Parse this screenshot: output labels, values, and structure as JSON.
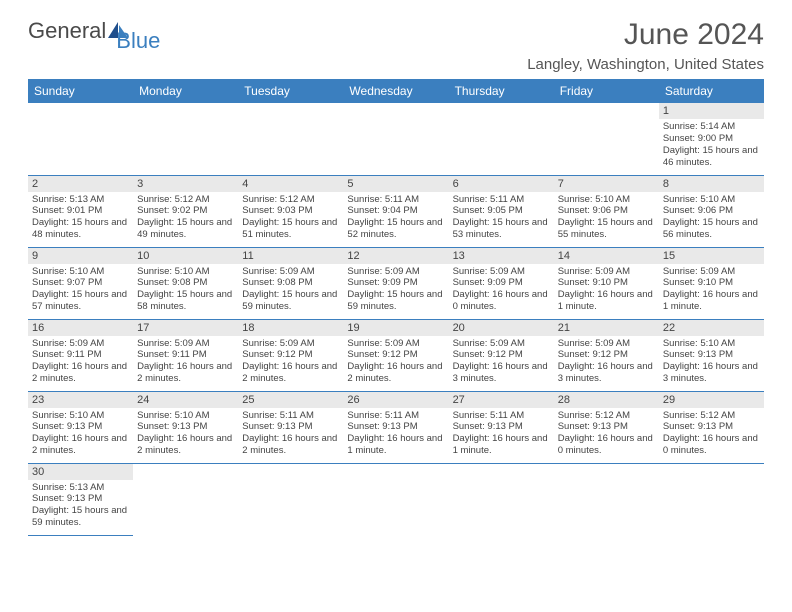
{
  "logo": {
    "text1": "General",
    "text2": "Blue"
  },
  "title": "June 2024",
  "location": "Langley, Washington, United States",
  "header_color": "#3b7fbf",
  "day_names": [
    "Sunday",
    "Monday",
    "Tuesday",
    "Wednesday",
    "Thursday",
    "Friday",
    "Saturday"
  ],
  "weeks": [
    [
      null,
      null,
      null,
      null,
      null,
      null,
      {
        "n": "1",
        "sr": "5:14 AM",
        "ss": "9:00 PM",
        "dl": "15 hours and 46 minutes."
      }
    ],
    [
      {
        "n": "2",
        "sr": "5:13 AM",
        "ss": "9:01 PM",
        "dl": "15 hours and 48 minutes."
      },
      {
        "n": "3",
        "sr": "5:12 AM",
        "ss": "9:02 PM",
        "dl": "15 hours and 49 minutes."
      },
      {
        "n": "4",
        "sr": "5:12 AM",
        "ss": "9:03 PM",
        "dl": "15 hours and 51 minutes."
      },
      {
        "n": "5",
        "sr": "5:11 AM",
        "ss": "9:04 PM",
        "dl": "15 hours and 52 minutes."
      },
      {
        "n": "6",
        "sr": "5:11 AM",
        "ss": "9:05 PM",
        "dl": "15 hours and 53 minutes."
      },
      {
        "n": "7",
        "sr": "5:10 AM",
        "ss": "9:06 PM",
        "dl": "15 hours and 55 minutes."
      },
      {
        "n": "8",
        "sr": "5:10 AM",
        "ss": "9:06 PM",
        "dl": "15 hours and 56 minutes."
      }
    ],
    [
      {
        "n": "9",
        "sr": "5:10 AM",
        "ss": "9:07 PM",
        "dl": "15 hours and 57 minutes."
      },
      {
        "n": "10",
        "sr": "5:10 AM",
        "ss": "9:08 PM",
        "dl": "15 hours and 58 minutes."
      },
      {
        "n": "11",
        "sr": "5:09 AM",
        "ss": "9:08 PM",
        "dl": "15 hours and 59 minutes."
      },
      {
        "n": "12",
        "sr": "5:09 AM",
        "ss": "9:09 PM",
        "dl": "15 hours and 59 minutes."
      },
      {
        "n": "13",
        "sr": "5:09 AM",
        "ss": "9:09 PM",
        "dl": "16 hours and 0 minutes."
      },
      {
        "n": "14",
        "sr": "5:09 AM",
        "ss": "9:10 PM",
        "dl": "16 hours and 1 minute."
      },
      {
        "n": "15",
        "sr": "5:09 AM",
        "ss": "9:10 PM",
        "dl": "16 hours and 1 minute."
      }
    ],
    [
      {
        "n": "16",
        "sr": "5:09 AM",
        "ss": "9:11 PM",
        "dl": "16 hours and 2 minutes."
      },
      {
        "n": "17",
        "sr": "5:09 AM",
        "ss": "9:11 PM",
        "dl": "16 hours and 2 minutes."
      },
      {
        "n": "18",
        "sr": "5:09 AM",
        "ss": "9:12 PM",
        "dl": "16 hours and 2 minutes."
      },
      {
        "n": "19",
        "sr": "5:09 AM",
        "ss": "9:12 PM",
        "dl": "16 hours and 2 minutes."
      },
      {
        "n": "20",
        "sr": "5:09 AM",
        "ss": "9:12 PM",
        "dl": "16 hours and 3 minutes."
      },
      {
        "n": "21",
        "sr": "5:09 AM",
        "ss": "9:12 PM",
        "dl": "16 hours and 3 minutes."
      },
      {
        "n": "22",
        "sr": "5:10 AM",
        "ss": "9:13 PM",
        "dl": "16 hours and 3 minutes."
      }
    ],
    [
      {
        "n": "23",
        "sr": "5:10 AM",
        "ss": "9:13 PM",
        "dl": "16 hours and 2 minutes."
      },
      {
        "n": "24",
        "sr": "5:10 AM",
        "ss": "9:13 PM",
        "dl": "16 hours and 2 minutes."
      },
      {
        "n": "25",
        "sr": "5:11 AM",
        "ss": "9:13 PM",
        "dl": "16 hours and 2 minutes."
      },
      {
        "n": "26",
        "sr": "5:11 AM",
        "ss": "9:13 PM",
        "dl": "16 hours and 1 minute."
      },
      {
        "n": "27",
        "sr": "5:11 AM",
        "ss": "9:13 PM",
        "dl": "16 hours and 1 minute."
      },
      {
        "n": "28",
        "sr": "5:12 AM",
        "ss": "9:13 PM",
        "dl": "16 hours and 0 minutes."
      },
      {
        "n": "29",
        "sr": "5:12 AM",
        "ss": "9:13 PM",
        "dl": "16 hours and 0 minutes."
      }
    ],
    [
      {
        "n": "30",
        "sr": "5:13 AM",
        "ss": "9:13 PM",
        "dl": "15 hours and 59 minutes."
      },
      null,
      null,
      null,
      null,
      null,
      null
    ]
  ],
  "labels": {
    "sunrise": "Sunrise:",
    "sunset": "Sunset:",
    "daylight": "Daylight:"
  }
}
